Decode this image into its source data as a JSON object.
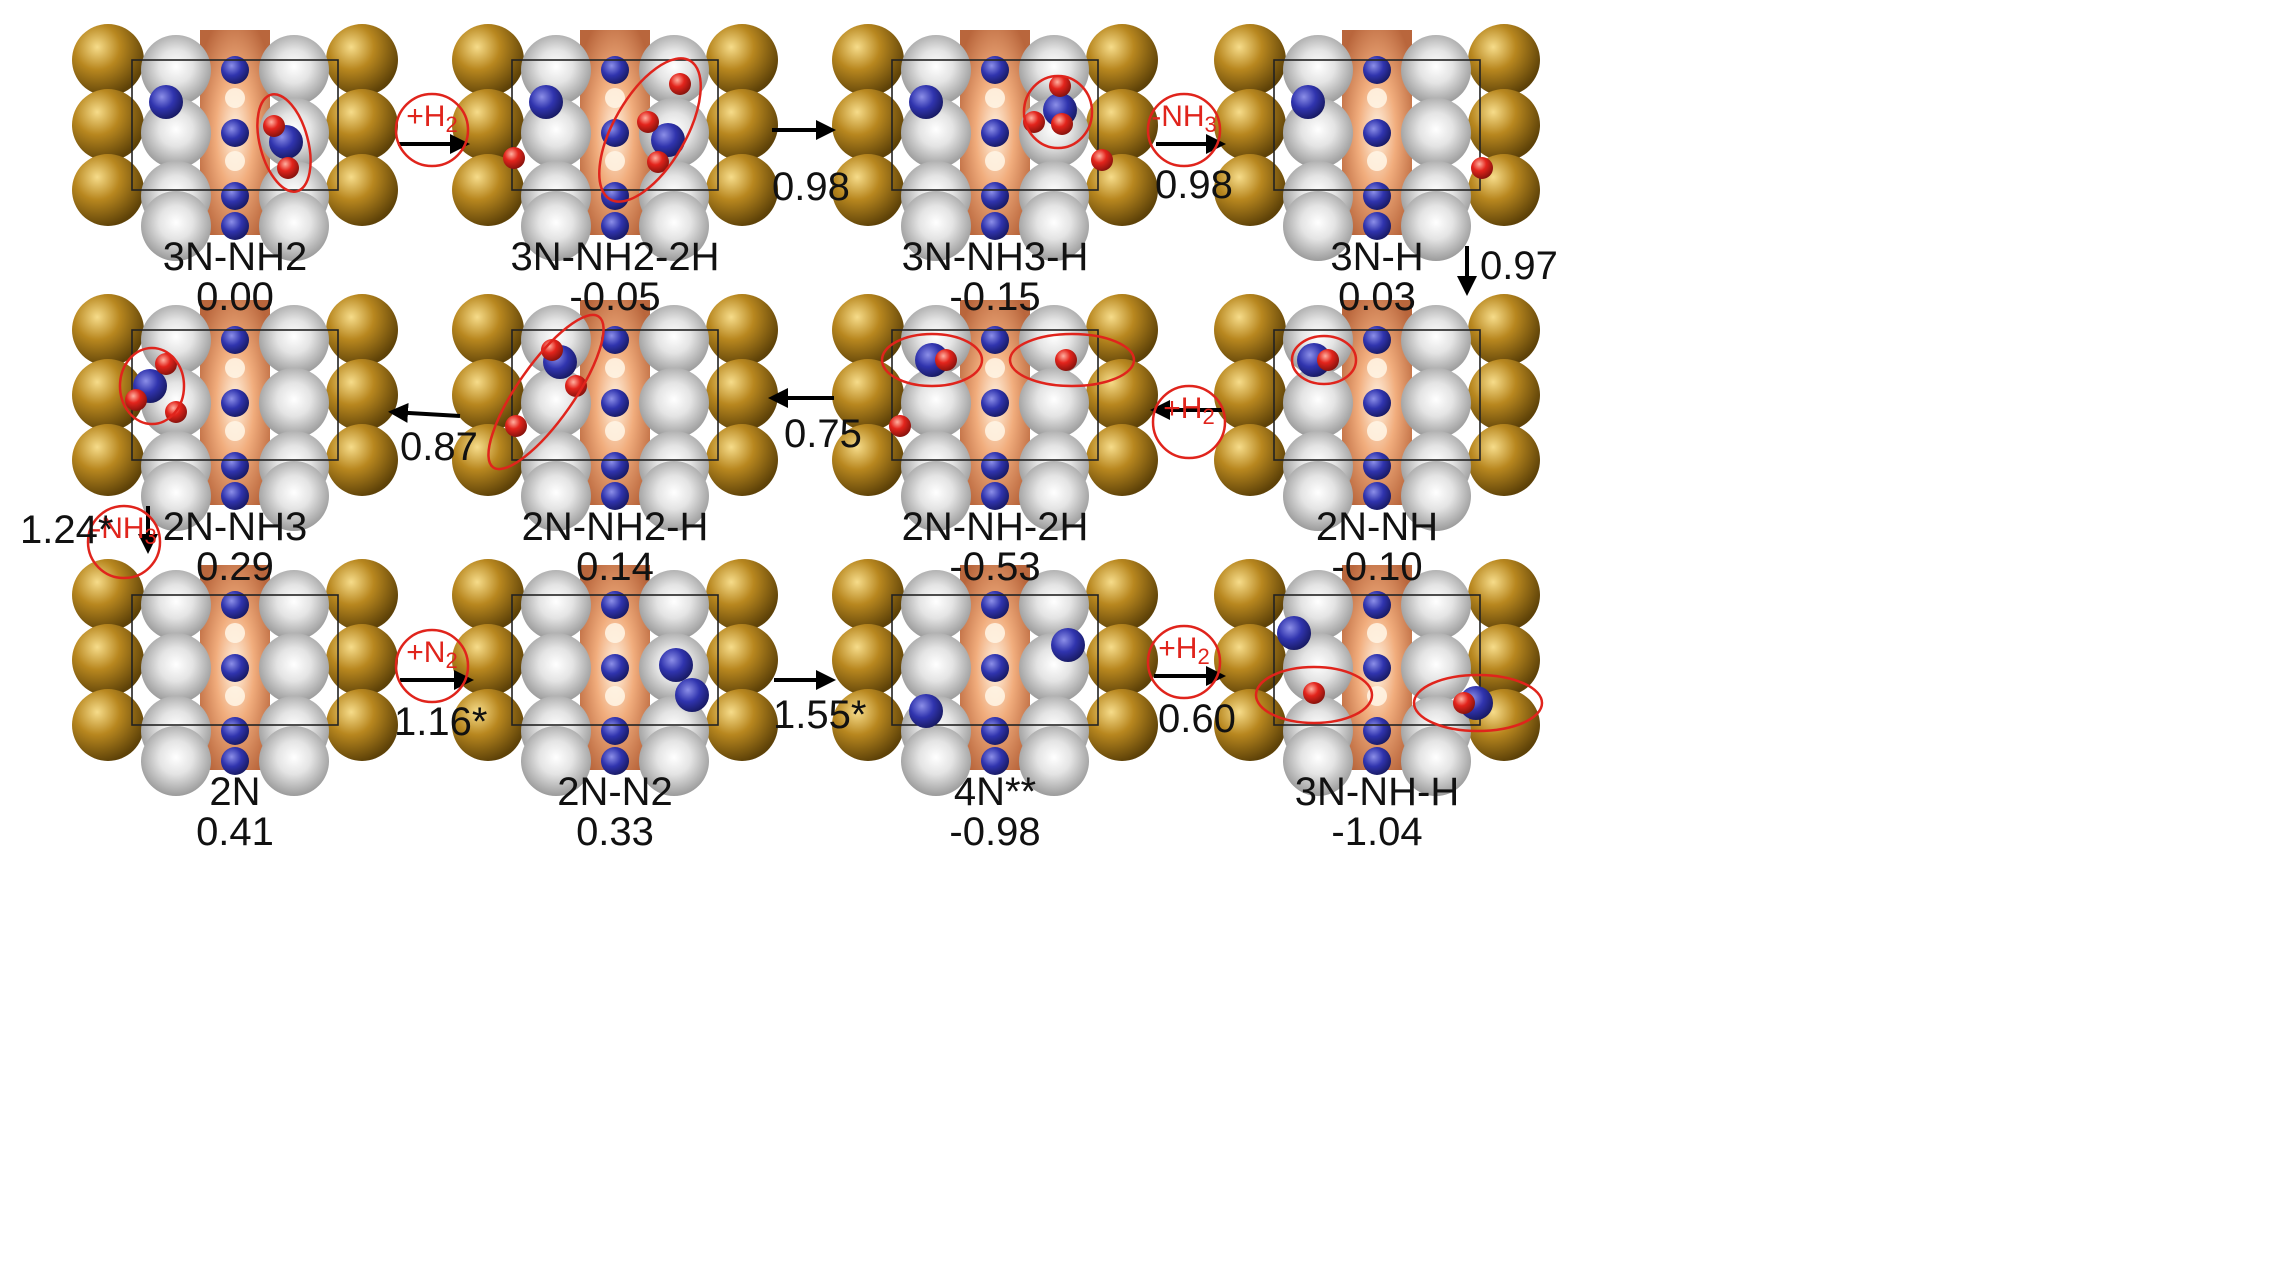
{
  "colors": {
    "gold": "#a8791c",
    "copper": "#e59a6c",
    "silver": "#c9c9c9",
    "nitrogen": "#2c2fa4",
    "hydrogen": "#e0241c",
    "circle": "#e0241c",
    "arrow": "#000000"
  },
  "structures": [
    {
      "name": "3N-NH2",
      "energy": "0.00"
    },
    {
      "name": "3N-NH2-2H",
      "energy": "-0.05"
    },
    {
      "name": "3N-NH3-H",
      "energy": "-0.15"
    },
    {
      "name": "3N-H",
      "energy": "0.03"
    },
    {
      "name": "2N-NH",
      "energy": "-0.10"
    },
    {
      "name": "2N-NH-2H",
      "energy": "-0.53"
    },
    {
      "name": "2N-NH2-H",
      "energy": "0.14"
    },
    {
      "name": "2N-NH3",
      "energy": "0.29"
    },
    {
      "name": "2N",
      "energy": "0.41"
    },
    {
      "name": "2N-N2",
      "energy": "0.33"
    },
    {
      "name": "4N**",
      "energy": "-0.98"
    },
    {
      "name": "3N-NH-H",
      "energy": "-1.04"
    }
  ],
  "steps": [
    {
      "reaction": "+H",
      "reaction_sub": "2",
      "value": ""
    },
    {
      "reaction": "",
      "reaction_sub": "",
      "value": "0.98"
    },
    {
      "reaction": "-NH",
      "reaction_sub": "3",
      "value": "0.98"
    },
    {
      "reaction": "",
      "reaction_sub": "",
      "value": "0.97"
    },
    {
      "reaction": "+H",
      "reaction_sub": "2",
      "value": ""
    },
    {
      "reaction": "",
      "reaction_sub": "",
      "value": "0.75"
    },
    {
      "reaction": "",
      "reaction_sub": "",
      "value": "0.87"
    },
    {
      "reaction": "-NH",
      "reaction_sub": "3",
      "value": "1.24*"
    },
    {
      "reaction": "+N",
      "reaction_sub": "2",
      "value": "1.16*"
    },
    {
      "reaction": "",
      "reaction_sub": "",
      "value": "1.55*"
    },
    {
      "reaction": "+H",
      "reaction_sub": "2",
      "value": "0.60"
    }
  ]
}
